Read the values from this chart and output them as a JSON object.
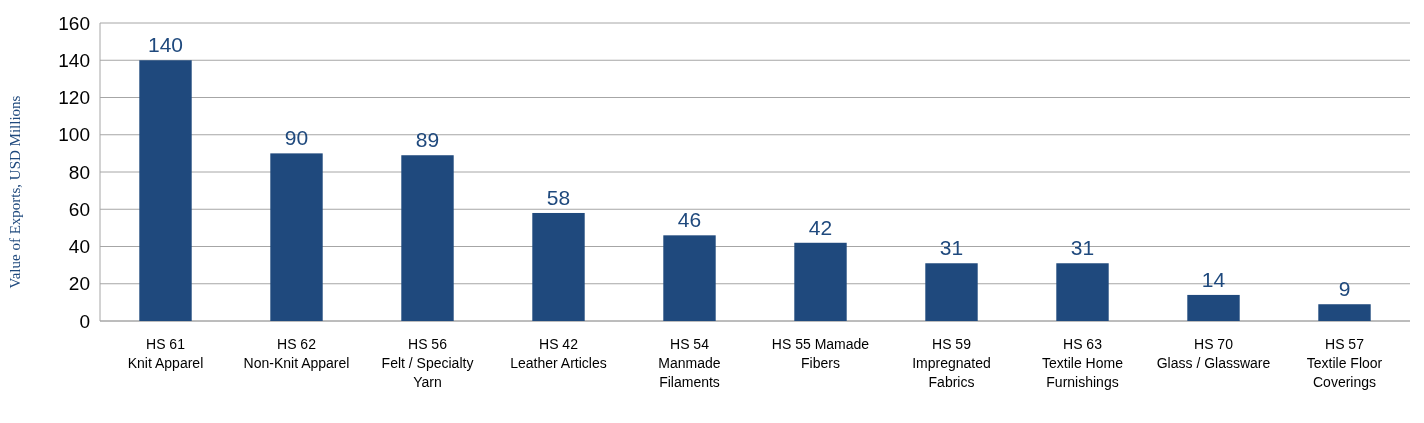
{
  "chart_data": {
    "type": "bar",
    "ylabel": "Value of Exports, USD Millions",
    "categories": [
      "HS 61\nKnit Apparel",
      "HS 62\nNon-Knit Apparel",
      "HS 56\nFelt / Specialty\nYarn",
      "HS 42\nLeather Articles",
      "HS 54\nManmade\nFilaments",
      "HS 55 Mamade\nFibers",
      "HS 59\nImpregnated\nFabrics",
      "HS 63\nTextile Home\nFurnishings",
      "HS 70\nGlass / Glassware",
      "HS 57\nTextile Floor\nCoverings"
    ],
    "values": [
      140,
      90,
      89,
      58,
      46,
      42,
      31,
      31,
      14,
      9
    ],
    "color": "#1f497d",
    "ylim": [
      0,
      160
    ],
    "yticks": [
      0,
      20,
      40,
      60,
      80,
      100,
      120,
      140,
      160
    ],
    "grid": "y",
    "data_labels": true
  }
}
